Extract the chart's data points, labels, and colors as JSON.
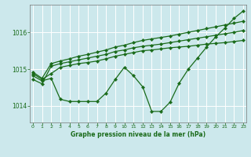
{
  "title": "Graphe pression niveau de la mer (hPa)",
  "bg_color": "#cce8ec",
  "grid_color": "#ffffff",
  "line_color": "#1a6b1a",
  "x_ticks": [
    0,
    1,
    2,
    3,
    4,
    5,
    6,
    7,
    8,
    9,
    10,
    11,
    12,
    13,
    14,
    15,
    16,
    17,
    18,
    19,
    20,
    21,
    22,
    23
  ],
  "y_ticks": [
    1014,
    1015,
    1016
  ],
  "ylim": [
    1013.55,
    1016.75
  ],
  "xlim": [
    -0.3,
    23.3
  ],
  "line_main": [
    1014.82,
    1014.68,
    1014.75,
    1014.18,
    1014.12,
    1014.12,
    1014.12,
    1014.12,
    1014.35,
    1014.72,
    1015.05,
    1014.82,
    1014.52,
    1013.85,
    1013.85,
    1014.1,
    1014.62,
    1015.0,
    1015.3,
    1015.6,
    1015.88,
    1016.12,
    1016.38,
    1016.58
  ],
  "line_a": [
    1014.88,
    1014.72,
    1014.88,
    1015.05,
    1015.1,
    1015.15,
    1015.18,
    1015.22,
    1015.28,
    1015.35,
    1015.4,
    1015.45,
    1015.5,
    1015.52,
    1015.55,
    1015.58,
    1015.6,
    1015.62,
    1015.65,
    1015.68,
    1015.7,
    1015.72,
    1015.75,
    1015.78
  ],
  "line_b": [
    1014.72,
    1014.6,
    1015.08,
    1015.15,
    1015.2,
    1015.25,
    1015.3,
    1015.35,
    1015.4,
    1015.48,
    1015.52,
    1015.58,
    1015.62,
    1015.65,
    1015.68,
    1015.72,
    1015.76,
    1015.8,
    1015.84,
    1015.88,
    1015.92,
    1015.96,
    1016.0,
    1016.05
  ],
  "line_c": [
    1014.92,
    1014.75,
    1015.15,
    1015.22,
    1015.28,
    1015.35,
    1015.4,
    1015.46,
    1015.52,
    1015.6,
    1015.65,
    1015.72,
    1015.78,
    1015.82,
    1015.86,
    1015.9,
    1015.95,
    1016.0,
    1016.05,
    1016.1,
    1016.15,
    1016.2,
    1016.25,
    1016.3
  ]
}
